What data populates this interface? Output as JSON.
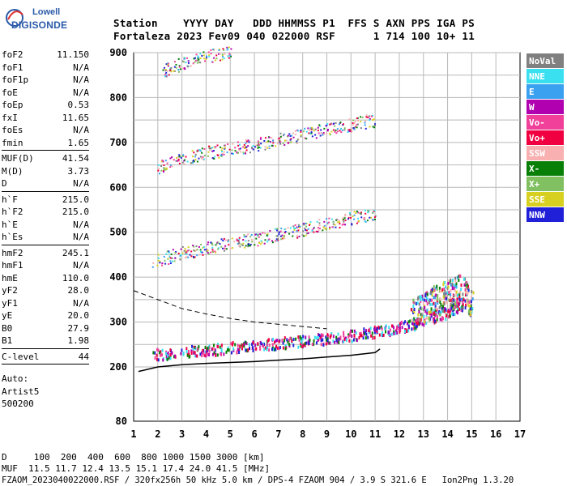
{
  "logo": {
    "line1": "Lowell",
    "line2": "DIGISONDE"
  },
  "header": {
    "line1": "Station    YYYY DAY   DDD HHMMSS P1  FFS S AXN PPS IGA PS",
    "line2": "Fortaleza 2023 Fev09 040 022000 RSF      1 714 100 10+ 11"
  },
  "params": [
    [
      {
        "label": "foF2",
        "value": "11.150"
      },
      {
        "label": "foF1",
        "value": "N/A"
      },
      {
        "label": "foF1p",
        "value": "N/A"
      },
      {
        "label": "foE",
        "value": "N/A"
      },
      {
        "label": "foEp",
        "value": "0.53"
      },
      {
        "label": "fxI",
        "value": "11.65"
      },
      {
        "label": "foEs",
        "value": "N/A"
      },
      {
        "label": "fmin",
        "value": "1.65"
      }
    ],
    [
      {
        "label": "MUF(D)",
        "value": "41.54"
      },
      {
        "label": "M(D)",
        "value": "3.73"
      },
      {
        "label": "D",
        "value": "N/A"
      }
    ],
    [
      {
        "label": "h`F",
        "value": "215.0"
      },
      {
        "label": "h`F2",
        "value": "215.0"
      },
      {
        "label": "h`E",
        "value": "N/A"
      },
      {
        "label": "h`Es",
        "value": "N/A"
      }
    ],
    [
      {
        "label": "hmF2",
        "value": "245.1"
      },
      {
        "label": "hmF1",
        "value": "N/A"
      },
      {
        "label": "hmE",
        "value": "110.0"
      },
      {
        "label": "yF2",
        "value": "28.0"
      },
      {
        "label": "yF1",
        "value": "N/A"
      },
      {
        "label": "yE",
        "value": "20.0"
      },
      {
        "label": "B0",
        "value": "27.9"
      },
      {
        "label": "B1",
        "value": "1.98"
      }
    ],
    [
      {
        "label": "C-level",
        "value": "44"
      }
    ]
  ],
  "auto": {
    "line1": "Auto:",
    "line2": "Artist5",
    "line3": "500200"
  },
  "legend": [
    {
      "label": "NoVal",
      "bg": "#808080",
      "fg": "#ffffff"
    },
    {
      "label": "NNE",
      "bg": "#3ae0f0",
      "fg": "#ffffff"
    },
    {
      "label": "E",
      "bg": "#3aa0f0",
      "fg": "#ffffff"
    },
    {
      "label": "W",
      "bg": "#b000b0",
      "fg": "#ffffff"
    },
    {
      "label": "Vo-",
      "bg": "#f0409a",
      "fg": "#ffffff"
    },
    {
      "label": "Vo+",
      "bg": "#f00040",
      "fg": "#ffffff"
    },
    {
      "label": "SSW",
      "bg": "#f8b0b0",
      "fg": "#ffffff"
    },
    {
      "label": "X-",
      "bg": "#088008",
      "fg": "#ffffff"
    },
    {
      "label": "X+",
      "bg": "#80c060",
      "fg": "#ffffff"
    },
    {
      "label": "SSE",
      "bg": "#d8d020",
      "fg": "#ffffff"
    },
    {
      "label": "NNW",
      "bg": "#2020d8",
      "fg": "#ffffff"
    }
  ],
  "footer": {
    "line1": "D     100  200  400  600  800 1000 1500 3000 [km]",
    "line2": "MUF  11.5 11.7 12.4 13.5 15.1 17.4 24.0 41.5 [MHz]",
    "line3": "FZAOM_2023040022000.RSF / 320fx256h 50 kHz 5.0 km / DPS-4 FZAOM 904 / 3.9 S 321.6 E   Ion2Png 1.3.20"
  },
  "chart_data": {
    "type": "scatter",
    "xlim": [
      1,
      17
    ],
    "ylim": [
      80,
      900
    ],
    "x_ticks": [
      1,
      2,
      3,
      4,
      5,
      6,
      7,
      8,
      9,
      10,
      11,
      12,
      13,
      14,
      15,
      16,
      17
    ],
    "y_ticks": [
      80,
      200,
      300,
      400,
      500,
      600,
      700,
      800,
      900
    ],
    "grid": true,
    "traces": [
      {
        "name": "first-hop F trace",
        "x": [
          1.8,
          3,
          4,
          5,
          6,
          7,
          8,
          9,
          10,
          11,
          12,
          13,
          14,
          14.8
        ],
        "y": [
          225,
          230,
          235,
          240,
          245,
          250,
          255,
          260,
          268,
          275,
          285,
          300,
          320,
          340
        ]
      },
      {
        "name": "second-hop",
        "x": [
          1.8,
          3,
          4,
          5,
          6,
          7,
          8,
          9,
          10,
          11
        ],
        "y": [
          430,
          448,
          460,
          470,
          480,
          490,
          500,
          515,
          525,
          535
        ]
      },
      {
        "name": "third-hop",
        "x": [
          2,
          3,
          4,
          5,
          6,
          7,
          8,
          9,
          10,
          11
        ],
        "y": [
          640,
          660,
          672,
          680,
          690,
          700,
          712,
          725,
          735,
          745
        ]
      },
      {
        "name": "fourth-hop",
        "x": [
          2.2,
          3,
          4,
          5
        ],
        "y": [
          855,
          870,
          885,
          898
        ]
      },
      {
        "name": "spread echoes",
        "x": [
          12.5,
          13,
          13.5,
          14,
          14.5,
          15
        ],
        "y": [
          300,
          320,
          335,
          350,
          360,
          330
        ]
      }
    ],
    "profile_solid": {
      "x": [
        1.2,
        2,
        3,
        4,
        5,
        6,
        7,
        8,
        9,
        10,
        11,
        11.2
      ],
      "y": [
        190,
        200,
        205,
        208,
        210,
        212,
        215,
        218,
        222,
        226,
        232,
        240
      ]
    },
    "profile_dashed": {
      "x": [
        1,
        1.5,
        2,
        3,
        4,
        5,
        6,
        7,
        8,
        9
      ],
      "y": [
        370,
        360,
        350,
        330,
        318,
        308,
        300,
        295,
        290,
        285
      ]
    }
  }
}
